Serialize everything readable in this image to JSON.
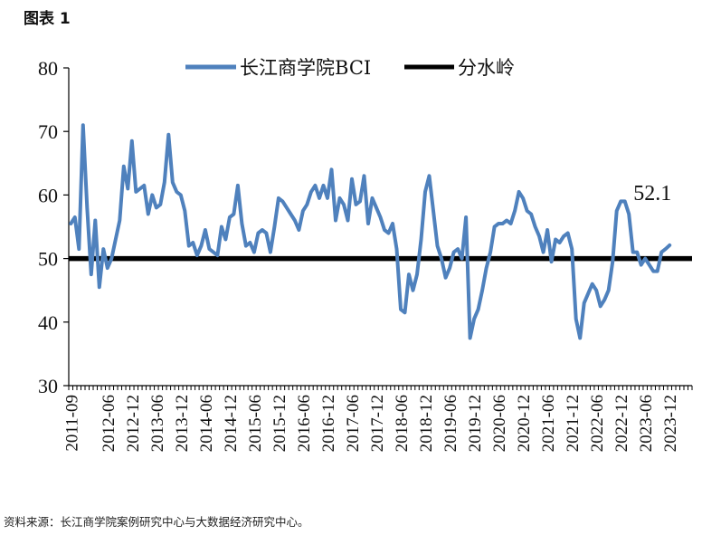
{
  "figure_label": "图表 1",
  "source_note": "资料来源：长江商学院案例研究中心与大数据经济研究中心。",
  "colors": {
    "bci_line": "#4f81bd",
    "watershed_line": "#000000",
    "axis": "#000000"
  },
  "chart_data": {
    "type": "line",
    "title": "",
    "xlabel": "",
    "ylabel": "",
    "ylim": [
      30,
      80
    ],
    "yticks": [
      30,
      40,
      50,
      60,
      70,
      80
    ],
    "grid": false,
    "legend_position": "top-center",
    "x_tick_labels": [
      "2011-09",
      "2012-06",
      "2012-12",
      "2013-06",
      "2013-12",
      "2014-06",
      "2014-12",
      "2015-06",
      "2015-12",
      "2016-06",
      "2016-12",
      "2017-06",
      "2017-12",
      "2018-06",
      "2018-12",
      "2019-06",
      "2019-12",
      "2020-06",
      "2020-12",
      "2021-06",
      "2021-12",
      "2022-06",
      "2022-12",
      "2023-06",
      "2023-12"
    ],
    "x_start": "2011-09",
    "x_end": "2024-05",
    "series": [
      {
        "name": "长江商学院BCI",
        "style": "line",
        "values": [
          55.5,
          56.5,
          51.5,
          71,
          58,
          47.5,
          56,
          45.5,
          51.5,
          48.5,
          50,
          53,
          56,
          64.5,
          61,
          68.5,
          60.5,
          61,
          61.5,
          57,
          60,
          58,
          58.5,
          62,
          69.5,
          62,
          60.5,
          60,
          57.5,
          52,
          52.5,
          50.5,
          52,
          54.5,
          51.5,
          51,
          50.5,
          55,
          53,
          56.5,
          57,
          61.5,
          55.5,
          52,
          52.5,
          51,
          54,
          54.5,
          54,
          51,
          55,
          59.5,
          59,
          58,
          57,
          56,
          54.5,
          57.5,
          58.5,
          60.5,
          61.5,
          59.5,
          61.5,
          59.5,
          64,
          56,
          59.5,
          58.5,
          56,
          62.5,
          58.5,
          59,
          63,
          55.5,
          59.5,
          58,
          56.5,
          54.5,
          54,
          55.5,
          51.5,
          42,
          41.5,
          47.5,
          45,
          47.5,
          53,
          60.5,
          63,
          57.5,
          52,
          50,
          47,
          48.5,
          51,
          51.5,
          50,
          56.5,
          37.5,
          40.5,
          42,
          45,
          48.5,
          51,
          55,
          55.5,
          55.5,
          56,
          55.5,
          57.5,
          60.5,
          59.5,
          57.5,
          57,
          55,
          53.5,
          51,
          54.5,
          49.5,
          53,
          52.5,
          53.5,
          54,
          51.5,
          40.5,
          37.5,
          43,
          44.5,
          46,
          45,
          42.5,
          43.5,
          45,
          49.5,
          57.5,
          59,
          59,
          57,
          51,
          51,
          49,
          50,
          49,
          48,
          48,
          51,
          51.5,
          52.1
        ]
      },
      {
        "name": "分水岭",
        "style": "line",
        "values": [
          50
        ]
      }
    ],
    "annotations": [
      {
        "text": "52.1",
        "target": "last_point"
      }
    ]
  }
}
